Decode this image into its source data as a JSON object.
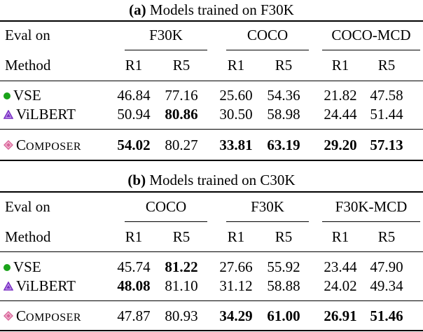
{
  "panels": [
    {
      "caption_tag": "(a)",
      "caption_text": " Models trained on F30K",
      "eval_label": "Eval on",
      "method_label": "Method",
      "groups": [
        "F30K",
        "COCO",
        "COCO-MCD"
      ],
      "metrics": [
        "R1",
        "R5",
        "R1",
        "R5",
        "R1",
        "R5"
      ],
      "rows": [
        {
          "marker": "green-dot-icon",
          "name": "VSE",
          "values": [
            "46.84",
            "77.16",
            "25.60",
            "54.36",
            "21.82",
            "47.58"
          ],
          "bold": [
            false,
            false,
            false,
            false,
            false,
            false
          ]
        },
        {
          "marker": "purple-triangle-icon",
          "name": "ViLBERT",
          "values": [
            "50.94",
            "80.86",
            "30.50",
            "58.98",
            "24.44",
            "51.44"
          ],
          "bold": [
            false,
            true,
            false,
            false,
            false,
            false
          ]
        },
        {
          "marker": "pink-diamond-icon",
          "name_first": "C",
          "name_rest": "OMPOSER",
          "values": [
            "54.02",
            "80.27",
            "33.81",
            "63.19",
            "29.20",
            "57.13"
          ],
          "bold": [
            true,
            false,
            true,
            true,
            true,
            true
          ]
        }
      ]
    },
    {
      "caption_tag": "(b)",
      "caption_text": " Models trained on C30K",
      "eval_label": "Eval on",
      "method_label": "Method",
      "groups": [
        "COCO",
        "F30K",
        "F30K-MCD"
      ],
      "metrics": [
        "R1",
        "R5",
        "R1",
        "R5",
        "R1",
        "R5"
      ],
      "rows": [
        {
          "marker": "green-dot-icon",
          "name": "VSE",
          "values": [
            "45.74",
            "81.22",
            "27.66",
            "55.92",
            "23.44",
            "47.90"
          ],
          "bold": [
            false,
            true,
            false,
            false,
            false,
            false
          ]
        },
        {
          "marker": "purple-triangle-icon",
          "name": "ViLBERT",
          "values": [
            "48.08",
            "81.10",
            "31.12",
            "58.88",
            "24.02",
            "49.34"
          ],
          "bold": [
            true,
            false,
            false,
            false,
            false,
            false
          ]
        },
        {
          "marker": "pink-diamond-icon",
          "name_first": "C",
          "name_rest": "OMPOSER",
          "values": [
            "47.87",
            "80.93",
            "34.29",
            "61.00",
            "26.91",
            "51.46"
          ],
          "bold": [
            false,
            false,
            true,
            true,
            true,
            true
          ]
        }
      ]
    }
  ],
  "colors": {
    "vse_dot": "#1aa31a",
    "vilbert_triangle": "#7a2fc4",
    "composer_diamond": "#d9669a"
  }
}
